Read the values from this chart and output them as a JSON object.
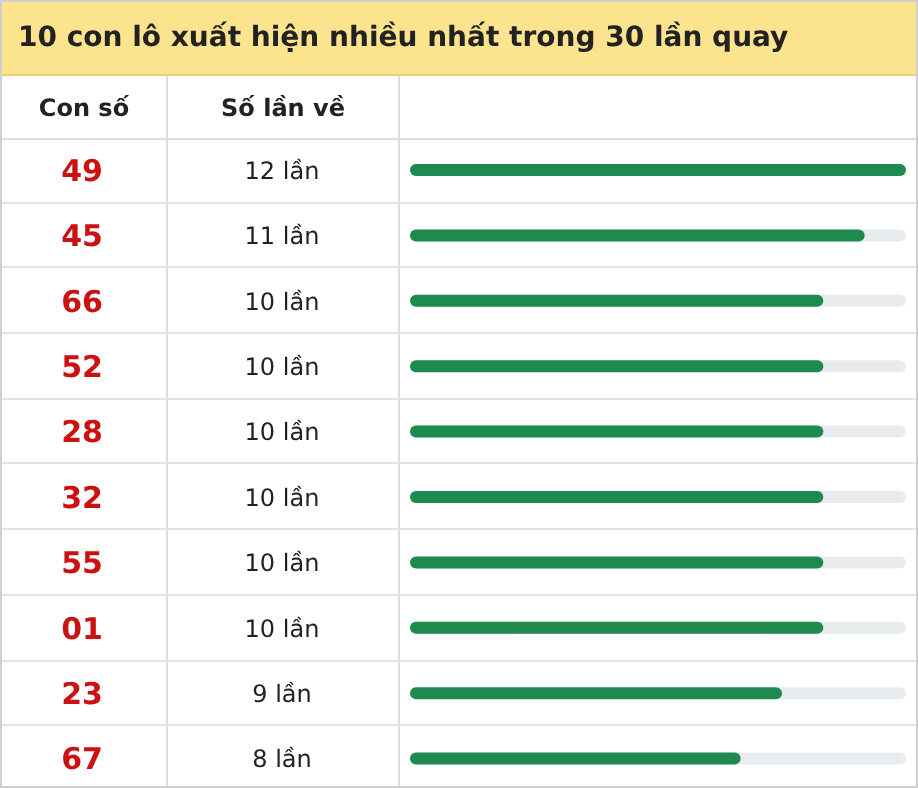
{
  "chart_data": {
    "type": "bar",
    "orientation": "horizontal",
    "title": "10 con lô xuất hiện nhiều nhất trong 30 lần quay",
    "ylabel": "Con số",
    "annotations": [
      "Số lần về"
    ],
    "categories": [
      "49",
      "45",
      "66",
      "52",
      "28",
      "32",
      "55",
      "01",
      "23",
      "67"
    ],
    "values": [
      12,
      11,
      10,
      10,
      10,
      10,
      10,
      10,
      9,
      8
    ],
    "value_labels": [
      "12 lần",
      "11 lần",
      "10 lần",
      "10 lần",
      "10 lần",
      "10 lần",
      "10 lần",
      "10 lần",
      "9 lần",
      "8 lần"
    ],
    "color": "#1e8a4f",
    "xlim": [
      0,
      12
    ],
    "tick_labels": "y"
  }
}
